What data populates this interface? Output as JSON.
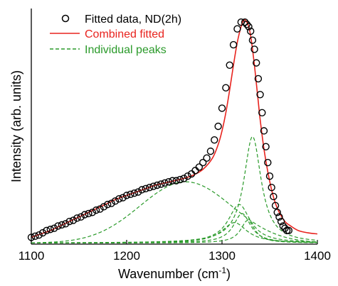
{
  "chart_data": {
    "type": "scatter",
    "xlabel": "Wavenumber (cm",
    "xlabel_sup": "-1",
    "xlabel_end": ")",
    "ylabel": "Intensity (arb. units)",
    "xlim": [
      1100,
      1400
    ],
    "ylim": [
      0,
      1.04
    ],
    "x_ticks": [
      1100,
      1200,
      1300,
      1400
    ],
    "y_ticks_labeled": false,
    "grid": false,
    "legend_position": "top-left",
    "colors": {
      "measured": "#000000",
      "combined": "#e8231e",
      "peaks": "#2a9a2a"
    },
    "series": [
      {
        "name": "Fitted data, ND(2h)",
        "style": "open-circles",
        "x": [
          1100,
          1104,
          1108,
          1112,
          1116,
          1120,
          1124,
          1128,
          1132,
          1136,
          1140,
          1144,
          1148,
          1152,
          1156,
          1160,
          1164,
          1168,
          1172,
          1176,
          1180,
          1184,
          1188,
          1192,
          1196,
          1200,
          1204,
          1208,
          1212,
          1216,
          1220,
          1224,
          1228,
          1232,
          1236,
          1240,
          1244,
          1248,
          1252,
          1256,
          1260,
          1264,
          1268,
          1272,
          1276,
          1280,
          1284,
          1288,
          1292,
          1296,
          1300,
          1304,
          1308,
          1312,
          1316,
          1320,
          1324,
          1326,
          1328,
          1330,
          1332,
          1334,
          1336,
          1338,
          1340,
          1342,
          1344,
          1346,
          1348,
          1350,
          1352,
          1354,
          1356,
          1358,
          1360,
          1362,
          1364,
          1366,
          1368,
          1370
        ],
        "y": [
          0.03,
          0.035,
          0.04,
          0.05,
          0.06,
          0.065,
          0.07,
          0.08,
          0.085,
          0.09,
          0.1,
          0.105,
          0.115,
          0.12,
          0.13,
          0.135,
          0.14,
          0.15,
          0.155,
          0.165,
          0.175,
          0.18,
          0.19,
          0.2,
          0.205,
          0.215,
          0.22,
          0.225,
          0.23,
          0.24,
          0.245,
          0.25,
          0.255,
          0.26,
          0.265,
          0.27,
          0.275,
          0.28,
          0.28,
          0.285,
          0.29,
          0.3,
          0.31,
          0.325,
          0.34,
          0.36,
          0.38,
          0.41,
          0.46,
          0.52,
          0.6,
          0.69,
          0.79,
          0.88,
          0.95,
          0.98,
          0.98,
          0.97,
          0.96,
          0.94,
          0.9,
          0.86,
          0.8,
          0.73,
          0.66,
          0.58,
          0.5,
          0.43,
          0.36,
          0.3,
          0.25,
          0.21,
          0.17,
          0.14,
          0.12,
          0.1,
          0.08,
          0.07,
          0.06,
          0.06
        ]
      },
      {
        "name": "Combined fitted",
        "style": "solid-line",
        "x": [
          1100,
          1110,
          1120,
          1130,
          1140,
          1150,
          1160,
          1170,
          1180,
          1190,
          1200,
          1210,
          1220,
          1230,
          1240,
          1250,
          1260,
          1270,
          1280,
          1290,
          1296,
          1300,
          1304,
          1308,
          1312,
          1316,
          1320,
          1323,
          1326,
          1328,
          1330,
          1332,
          1334,
          1336,
          1338,
          1340,
          1344,
          1348,
          1352,
          1356,
          1360,
          1366,
          1372,
          1380,
          1390,
          1400
        ],
        "y": [
          0.03,
          0.045,
          0.06,
          0.08,
          0.1,
          0.12,
          0.14,
          0.16,
          0.18,
          0.2,
          0.215,
          0.23,
          0.245,
          0.26,
          0.27,
          0.28,
          0.29,
          0.305,
          0.33,
          0.38,
          0.44,
          0.5,
          0.58,
          0.68,
          0.79,
          0.89,
          0.96,
          0.99,
          0.98,
          0.96,
          0.92,
          0.86,
          0.79,
          0.71,
          0.63,
          0.55,
          0.42,
          0.32,
          0.24,
          0.18,
          0.14,
          0.1,
          0.08,
          0.06,
          0.05,
          0.045
        ]
      }
    ],
    "peaks": {
      "name": "Individual peaks",
      "style": "dashed-line",
      "components": [
        {
          "shape": "gaussian",
          "center": 1262,
          "height": 0.27,
          "width": 48
        },
        {
          "shape": "lorentzian",
          "center": 1332,
          "height": 0.47,
          "hwhm": 11
        },
        {
          "shape": "lorentzian",
          "center": 1318,
          "height": 0.17,
          "hwhm": 14
        },
        {
          "shape": "lorentzian",
          "center": 1321,
          "height": 0.13,
          "hwhm": 11
        },
        {
          "shape": "lorentzian",
          "center": 1313,
          "height": 0.09,
          "hwhm": 16
        },
        {
          "shape": "lorentzian",
          "center": 1327,
          "height": 0.1,
          "hwhm": 9
        }
      ]
    }
  }
}
